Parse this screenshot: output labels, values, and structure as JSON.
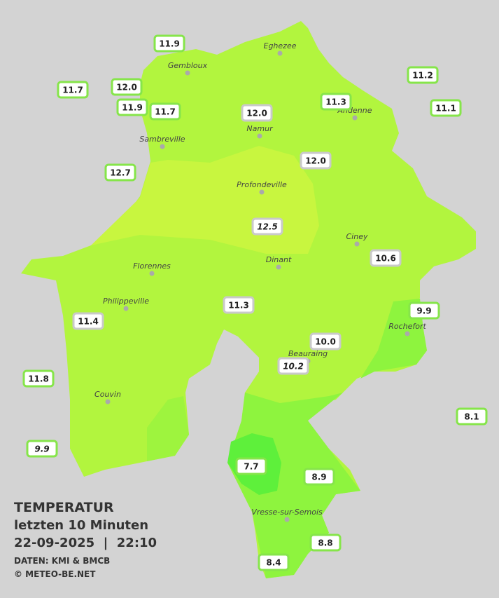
{
  "title": "TEMPERATUR",
  "subtitle": "letzten 10 Minuten",
  "datetime": "22-09-2025  |  22:10",
  "source": "DATEN: KMI & BMCB",
  "copyright": "© METEO-BE.NET",
  "cities": [
    "Eghezee",
    "Gembloux",
    "Andenne",
    "Namur",
    "Sambreville",
    "Profondeville",
    "Ciney",
    "Dinant",
    "Florennes",
    "Philippeville",
    "Rochefort",
    "Beauraing",
    "Couvin",
    "Vresse-sur-Semois"
  ],
  "stations": [
    "11.9",
    "11.7",
    "12.0",
    "11.9",
    "11.7",
    "12.0",
    "11.3",
    "11.2",
    "11.1",
    "12.0",
    "12.7",
    "12.5",
    "10.6",
    "11.3",
    "11.4",
    "9.9",
    "10.0",
    "10.2",
    "11.8",
    "8.1",
    "9.9",
    "7.7",
    "8.9",
    "8.8",
    "8.4"
  ]
}
